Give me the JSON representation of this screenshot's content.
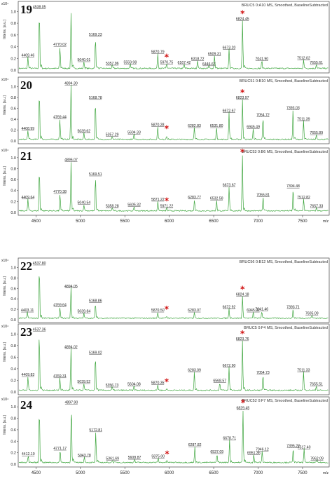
{
  "figure": {
    "groups": [
      {
        "id": "top",
        "xaxis": {
          "ticks": [
            4500,
            5000,
            5500,
            6000,
            6500,
            7000,
            7500
          ],
          "unit_label": "m/z",
          "range": [
            4300,
            7800
          ]
        }
      },
      {
        "id": "bottom",
        "xaxis": {
          "ticks": [
            4500,
            5000,
            5500,
            6000,
            6500,
            7000,
            7500
          ],
          "unit_label": "m/z",
          "range": [
            4300,
            7800
          ]
        }
      }
    ]
  },
  "chart_data": [
    {
      "type": "line",
      "group": "top",
      "panel_number": "19",
      "description": "BRUC5 0:A10 MS, Smoothed, BaselineSubtracted",
      "ylabel": "Intens. [a.u.]",
      "yexp": "x10⁴",
      "yticks": [
        "0.2",
        "0.4",
        "0.6",
        "0.8",
        "1.0"
      ],
      "ylim": [
        0,
        1.1
      ],
      "line_color": "#3fa63f",
      "peaks": [
        {
          "x": 4409.46,
          "y": 0.2,
          "label": "4409.46"
        },
        {
          "x": 4538.05,
          "y": 1.02,
          "label": "4538.05"
        },
        {
          "x": 4770.02,
          "y": 0.38,
          "label": "4770.02"
        },
        {
          "x": 4895.0,
          "y": 0.95,
          "label": ""
        },
        {
          "x": 5040.01,
          "y": 0.12,
          "label": "5040.01"
        },
        {
          "x": 5169.23,
          "y": 0.55,
          "label": "5169.23"
        },
        {
          "x": 5357.96,
          "y": 0.06,
          "label": "5357.96"
        },
        {
          "x": 5559.98,
          "y": 0.08,
          "label": "5559.98"
        },
        {
          "x": 5870.79,
          "y": 0.26,
          "label": "5870.79"
        },
        {
          "x": 5970.75,
          "y": 0.08,
          "label": "5970.75"
        },
        {
          "x": 6167.42,
          "y": 0.07,
          "label": "6167.42"
        },
        {
          "x": 6318.72,
          "y": 0.14,
          "label": "6318.72"
        },
        {
          "x": 6446.67,
          "y": 0.05,
          "label": "6446.67"
        },
        {
          "x": 6509.31,
          "y": 0.22,
          "label": "6509.31"
        },
        {
          "x": 6673.2,
          "y": 0.33,
          "label": "6673.20"
        },
        {
          "x": 6824.45,
          "y": 0.82,
          "label": "6824.45"
        },
        {
          "x": 7041.9,
          "y": 0.14,
          "label": "7041.90"
        },
        {
          "x": 7512.02,
          "y": 0.15,
          "label": "7512.02"
        },
        {
          "x": 7655.61,
          "y": 0.07,
          "label": "7655.61"
        }
      ],
      "stars": [
        5970.75,
        6824.45
      ]
    },
    {
      "type": "line",
      "group": "top",
      "panel_number": "20",
      "description": "BRUC51 0:B10 MS, Smoothed, BaselineSubtracted",
      "ylabel": "Intens. [a.u.]",
      "yexp": "x10⁴",
      "yticks": [
        "0.2",
        "0.4",
        "0.6",
        "0.8",
        "1.0"
      ],
      "ylim": [
        0,
        1.1
      ],
      "line_color": "#3fa63f",
      "peaks": [
        {
          "x": 4408.99,
          "y": 0.17,
          "label": "4408.99"
        },
        {
          "x": 4538.0,
          "y": 0.93,
          "label": ""
        },
        {
          "x": 4769.44,
          "y": 0.38,
          "label": "4769.44"
        },
        {
          "x": 4894.3,
          "y": 1.0,
          "label": "4894.30"
        },
        {
          "x": 5039.62,
          "y": 0.12,
          "label": "5039.62"
        },
        {
          "x": 5168.78,
          "y": 0.74,
          "label": "5168.78"
        },
        {
          "x": 5357.29,
          "y": 0.06,
          "label": "5357.29"
        },
        {
          "x": 5604.33,
          "y": 0.1,
          "label": "5604.33"
        },
        {
          "x": 5870.28,
          "y": 0.24,
          "label": "5870.28"
        },
        {
          "x": 5970.0,
          "y": 0.07,
          "label": ""
        },
        {
          "x": 6282.83,
          "y": 0.22,
          "label": "6282.83"
        },
        {
          "x": 6531.8,
          "y": 0.22,
          "label": "6531.80"
        },
        {
          "x": 6672.67,
          "y": 0.5,
          "label": "6672.67"
        },
        {
          "x": 6823.97,
          "y": 0.74,
          "label": "6823.97"
        },
        {
          "x": 6945.49,
          "y": 0.2,
          "label": "6945.49"
        },
        {
          "x": 7054.72,
          "y": 0.42,
          "label": "7054.72"
        },
        {
          "x": 7393.03,
          "y": 0.55,
          "label": "7393.03"
        },
        {
          "x": 7511.39,
          "y": 0.34,
          "label": "7511.39"
        },
        {
          "x": 7655.89,
          "y": 0.09,
          "label": "7655.89"
        }
      ],
      "stars": [
        5970.0,
        6823.97
      ]
    },
    {
      "type": "line",
      "group": "top",
      "panel_number": "21",
      "description": "BRUC53 0:B6 MS, Smoothed, BaselineSubtracted",
      "ylabel": "Intens. [a.u.]",
      "yexp": "x10⁴",
      "yticks": [
        "0.2",
        "0.4",
        "0.6",
        "0.8",
        "1.0"
      ],
      "ylim": [
        0,
        1.1
      ],
      "line_color": "#3fa63f",
      "peaks": [
        {
          "x": 4409.64,
          "y": 0.22,
          "label": "4409.64"
        },
        {
          "x": 4538.0,
          "y": 0.8,
          "label": ""
        },
        {
          "x": 4770.38,
          "y": 0.32,
          "label": "4770.38"
        },
        {
          "x": 4895.07,
          "y": 0.9,
          "label": "4895.07"
        },
        {
          "x": 5040.54,
          "y": 0.12,
          "label": "5040.54"
        },
        {
          "x": 5169.51,
          "y": 0.64,
          "label": "5169.51"
        },
        {
          "x": 5358.28,
          "y": 0.06,
          "label": "5358.28"
        },
        {
          "x": 5605.32,
          "y": 0.08,
          "label": "5605.32"
        },
        {
          "x": 5871.22,
          "y": 0.18,
          "label": "5871.22"
        },
        {
          "x": 5971.22,
          "y": 0.06,
          "label": "5971.22"
        },
        {
          "x": 6283.77,
          "y": 0.22,
          "label": "6283.77"
        },
        {
          "x": 6532.58,
          "y": 0.2,
          "label": "6532.58"
        },
        {
          "x": 6673.67,
          "y": 0.44,
          "label": "6673.67"
        },
        {
          "x": 6823.0,
          "y": 1.05,
          "label": ""
        },
        {
          "x": 7055.81,
          "y": 0.26,
          "label": "7055.81"
        },
        {
          "x": 7394.48,
          "y": 0.42,
          "label": "7394.48"
        },
        {
          "x": 7512.82,
          "y": 0.22,
          "label": "7512.82"
        },
        {
          "x": 7657.33,
          "y": 0.06,
          "label": "7657.33"
        }
      ],
      "stars": [
        5971.22,
        6823.0
      ]
    },
    {
      "type": "line",
      "group": "bottom",
      "panel_number": "22",
      "description": "BRUC56 0:B12 MS, Smoothed, BaselineSubtracted",
      "ylabel": "Intens. [a.u.]",
      "yexp": "x10⁴",
      "yticks": [
        "0.2",
        "0.4",
        "0.6",
        "0.8",
        "1.0"
      ],
      "ylim": [
        0,
        1.1
      ],
      "line_color": "#3fa63f",
      "peaks": [
        {
          "x": 4403.11,
          "y": 0.12,
          "label": "4403.11"
        },
        {
          "x": 4537.8,
          "y": 1.02,
          "label": "4537.80"
        },
        {
          "x": 4769.64,
          "y": 0.22,
          "label": "4769.64"
        },
        {
          "x": 4894.05,
          "y": 0.58,
          "label": "4894.05"
        },
        {
          "x": 5039.84,
          "y": 0.1,
          "label": "5039.84"
        },
        {
          "x": 5168.86,
          "y": 0.3,
          "label": "5168.86"
        },
        {
          "x": 5870.5,
          "y": 0.12,
          "label": "5870.50"
        },
        {
          "x": 5970.0,
          "y": 0.04,
          "label": ""
        },
        {
          "x": 6283.07,
          "y": 0.12,
          "label": "6283.07"
        },
        {
          "x": 6672.92,
          "y": 0.18,
          "label": "6672.92"
        },
        {
          "x": 6824.18,
          "y": 0.42,
          "label": "6824.18"
        },
        {
          "x": 6945.97,
          "y": 0.12,
          "label": "6945.97"
        },
        {
          "x": 7041.46,
          "y": 0.14,
          "label": "7041.46"
        },
        {
          "x": 7393.71,
          "y": 0.18,
          "label": "7393.71"
        },
        {
          "x": 7605.09,
          "y": 0.06,
          "label": "7605.09"
        }
      ],
      "stars": [
        5970.0,
        6824.18
      ]
    },
    {
      "type": "line",
      "group": "bottom",
      "panel_number": "23",
      "description": "BRUC5 0:F4 MS, Smoothed, BaselineSubtracted",
      "ylabel": "Intens. [a.u.]",
      "yexp": "x10⁴",
      "yticks": [
        "0.2",
        "0.4",
        "0.6",
        "0.8",
        "1.0"
      ],
      "ylim": [
        0,
        1.1
      ],
      "line_color": "#3fa63f",
      "peaks": [
        {
          "x": 4409.83,
          "y": 0.24,
          "label": "4409.83"
        },
        {
          "x": 4537.36,
          "y": 1.02,
          "label": "4537.36"
        },
        {
          "x": 4769.31,
          "y": 0.22,
          "label": "4769.31"
        },
        {
          "x": 4894.02,
          "y": 0.72,
          "label": "4894.02"
        },
        {
          "x": 5039.52,
          "y": 0.12,
          "label": "5039.52"
        },
        {
          "x": 5169.02,
          "y": 0.62,
          "label": "5169.02"
        },
        {
          "x": 5356.73,
          "y": 0.06,
          "label": "5356.73"
        },
        {
          "x": 5604.08,
          "y": 0.08,
          "label": "5604.08"
        },
        {
          "x": 5870.35,
          "y": 0.1,
          "label": "5870.35"
        },
        {
          "x": 5970.0,
          "y": 0.03,
          "label": ""
        },
        {
          "x": 6283.09,
          "y": 0.32,
          "label": "6283.09"
        },
        {
          "x": 6568.57,
          "y": 0.14,
          "label": "6568.57"
        },
        {
          "x": 6672.9,
          "y": 0.4,
          "label": "6672.90"
        },
        {
          "x": 6823.76,
          "y": 0.86,
          "label": "6823.76"
        },
        {
          "x": 7054.73,
          "y": 0.28,
          "label": "7054.73"
        },
        {
          "x": 7511.33,
          "y": 0.32,
          "label": "7511.33"
        },
        {
          "x": 7655.51,
          "y": 0.08,
          "label": "7655.51"
        }
      ],
      "stars": [
        5970.0,
        6823.76
      ]
    },
    {
      "type": "line",
      "group": "bottom",
      "panel_number": "24",
      "description": "BRUC52 0:F7 MS, Smoothed, BaselineSubtracted",
      "ylabel": "Intens. [a.u.]",
      "yexp": "x10⁴",
      "yticks": [
        "0.2",
        "0.4",
        "0.6",
        "0.8",
        "1.0"
      ],
      "ylim": [
        0,
        1.1
      ],
      "line_color": "#3fa63f",
      "peaks": [
        {
          "x": 4412.1,
          "y": 0.12,
          "label": "4412.10"
        },
        {
          "x": 4538.0,
          "y": 0.98,
          "label": ""
        },
        {
          "x": 4771.17,
          "y": 0.22,
          "label": "4771.17"
        },
        {
          "x": 4897.9,
          "y": 1.02,
          "label": "4897.90"
        },
        {
          "x": 5043.78,
          "y": 0.1,
          "label": "5043.78"
        },
        {
          "x": 5172.81,
          "y": 0.54,
          "label": "5172.81"
        },
        {
          "x": 5361.69,
          "y": 0.04,
          "label": "5361.69"
        },
        {
          "x": 5608.87,
          "y": 0.06,
          "label": "5608.87"
        },
        {
          "x": 5875.0,
          "y": 0.08,
          "label": "5875.00"
        },
        {
          "x": 5975.0,
          "y": 0.03,
          "label": ""
        },
        {
          "x": 6287.82,
          "y": 0.28,
          "label": "6287.82"
        },
        {
          "x": 6537.09,
          "y": 0.16,
          "label": "6537.09"
        },
        {
          "x": 6678.71,
          "y": 0.4,
          "label": "6678.71"
        },
        {
          "x": 6829.45,
          "y": 0.92,
          "label": "6829.45"
        },
        {
          "x": 6951.36,
          "y": 0.14,
          "label": "6951.36"
        },
        {
          "x": 7046.12,
          "y": 0.2,
          "label": "7046.12"
        },
        {
          "x": 7395.22,
          "y": 0.26,
          "label": "7395.22"
        },
        {
          "x": 7517.4,
          "y": 0.24,
          "label": "7517.40"
        },
        {
          "x": 7662.09,
          "y": 0.04,
          "label": "7662.09"
        }
      ],
      "stars": [
        5975.0,
        6829.45
      ]
    }
  ]
}
